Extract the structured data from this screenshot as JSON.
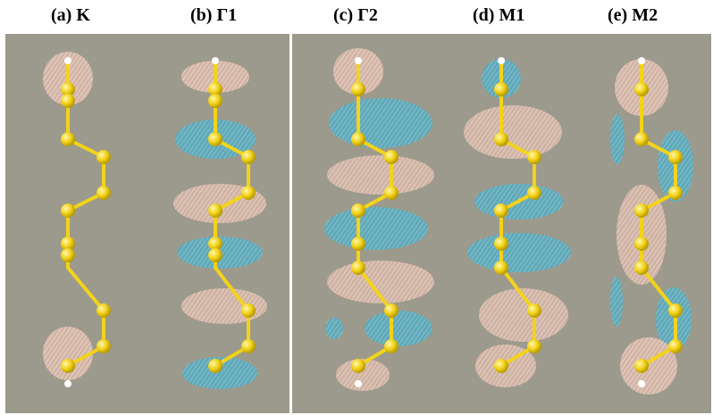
{
  "panels": [
    {
      "label": "(a) K"
    },
    {
      "label": "(b) Γ1"
    },
    {
      "label": "(c) Γ2"
    },
    {
      "label": "(d) M1"
    },
    {
      "label": "(e) M2"
    }
  ],
  "colors": {
    "background": "#9c9a8c",
    "atom": "#f3d31a",
    "bond": "#f3d31a",
    "lobe_pink": "#d9b8a8",
    "lobe_cyan": "#5fb0c2",
    "divider": "#ffffff"
  }
}
